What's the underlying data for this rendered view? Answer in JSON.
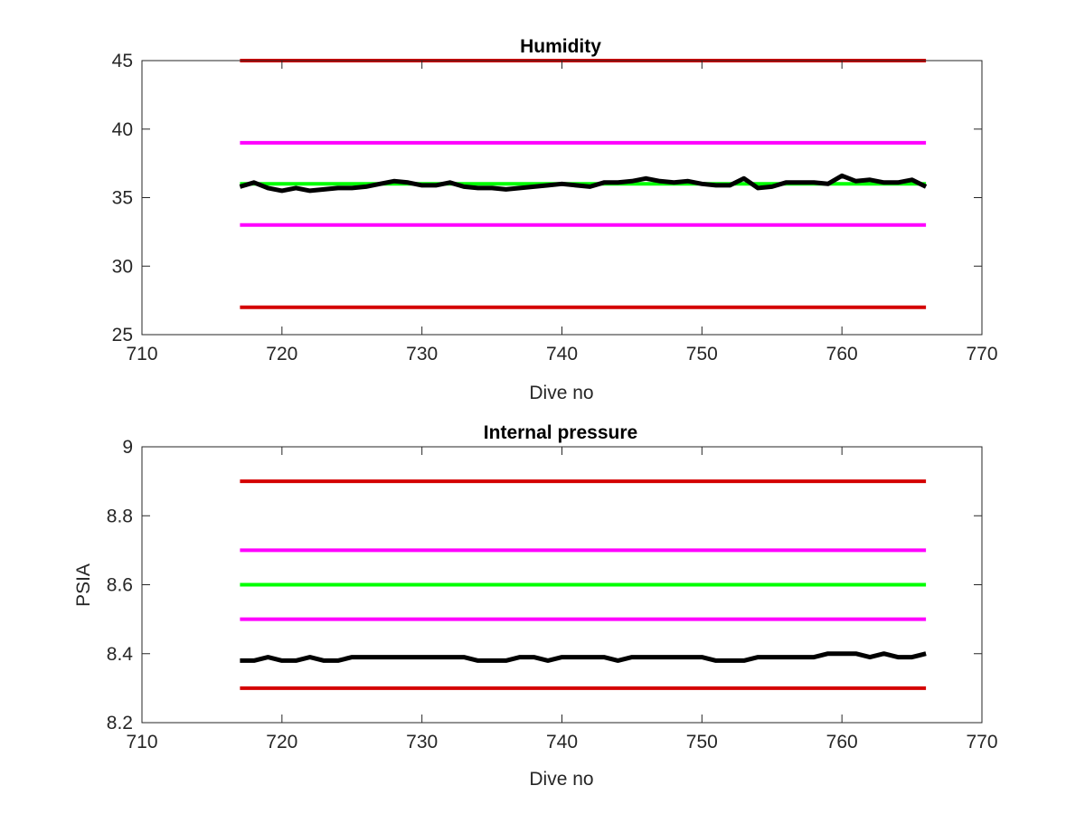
{
  "chart_data": [
    {
      "type": "line",
      "title": "Humidity",
      "xlabel": "Dive no",
      "ylabel": "",
      "xlim": [
        710,
        770
      ],
      "ylim": [
        25,
        45
      ],
      "xticks": [
        710,
        720,
        730,
        740,
        750,
        760,
        770
      ],
      "yticks": [
        25,
        30,
        35,
        40,
        45
      ],
      "grid": false,
      "series": [
        {
          "color": "#d40000",
          "x": [
            717,
            766
          ],
          "values": [
            45,
            45
          ]
        },
        {
          "color": "#ff00ff",
          "x": [
            717,
            766
          ],
          "values": [
            39,
            39
          ]
        },
        {
          "color": "#00ff00",
          "x": [
            717,
            766
          ],
          "values": [
            36,
            36
          ]
        },
        {
          "color": "#ff00ff",
          "x": [
            717,
            766
          ],
          "values": [
            33,
            33
          ]
        },
        {
          "color": "#d40000",
          "x": [
            717,
            766
          ],
          "values": [
            27,
            27
          ]
        },
        {
          "color": "#000000",
          "x": [
            717,
            718,
            719,
            720,
            721,
            722,
            723,
            724,
            725,
            726,
            727,
            728,
            729,
            730,
            731,
            732,
            733,
            734,
            735,
            736,
            737,
            738,
            739,
            740,
            741,
            742,
            743,
            744,
            745,
            746,
            747,
            748,
            749,
            750,
            751,
            752,
            753,
            754,
            755,
            756,
            757,
            758,
            759,
            760,
            761,
            762,
            763,
            764,
            765,
            766
          ],
          "values": [
            35.8,
            36.1,
            35.7,
            35.5,
            35.7,
            35.5,
            35.6,
            35.7,
            35.7,
            35.8,
            36.0,
            36.2,
            36.1,
            35.9,
            35.9,
            36.1,
            35.8,
            35.7,
            35.7,
            35.6,
            35.7,
            35.8,
            35.9,
            36.0,
            35.9,
            35.8,
            36.1,
            36.1,
            36.2,
            36.4,
            36.2,
            36.1,
            36.2,
            36.0,
            35.9,
            35.9,
            36.4,
            35.7,
            35.8,
            36.1,
            36.1,
            36.1,
            36.0,
            36.6,
            36.2,
            36.3,
            36.1,
            36.1,
            36.3,
            35.8
          ]
        }
      ]
    },
    {
      "type": "line",
      "title": "Internal pressure",
      "xlabel": "Dive no",
      "ylabel": "PSIA",
      "xlim": [
        710,
        770
      ],
      "ylim": [
        8.2,
        9
      ],
      "xticks": [
        710,
        720,
        730,
        740,
        750,
        760,
        770
      ],
      "yticks": [
        8.2,
        8.4,
        8.6,
        8.8,
        9
      ],
      "grid": false,
      "series": [
        {
          "color": "#d40000",
          "x": [
            717,
            766
          ],
          "values": [
            8.9,
            8.9
          ]
        },
        {
          "color": "#ff00ff",
          "x": [
            717,
            766
          ],
          "values": [
            8.7,
            8.7
          ]
        },
        {
          "color": "#00ff00",
          "x": [
            717,
            766
          ],
          "values": [
            8.6,
            8.6
          ]
        },
        {
          "color": "#ff00ff",
          "x": [
            717,
            766
          ],
          "values": [
            8.5,
            8.5
          ]
        },
        {
          "color": "#d40000",
          "x": [
            717,
            766
          ],
          "values": [
            8.3,
            8.3
          ]
        },
        {
          "color": "#000000",
          "x": [
            717,
            718,
            719,
            720,
            721,
            722,
            723,
            724,
            725,
            726,
            727,
            728,
            729,
            730,
            731,
            732,
            733,
            734,
            735,
            736,
            737,
            738,
            739,
            740,
            741,
            742,
            743,
            744,
            745,
            746,
            747,
            748,
            749,
            750,
            751,
            752,
            753,
            754,
            755,
            756,
            757,
            758,
            759,
            760,
            761,
            762,
            763,
            764,
            765,
            766
          ],
          "values": [
            8.38,
            8.38,
            8.39,
            8.38,
            8.38,
            8.39,
            8.38,
            8.38,
            8.39,
            8.39,
            8.39,
            8.39,
            8.39,
            8.39,
            8.39,
            8.39,
            8.39,
            8.38,
            8.38,
            8.38,
            8.39,
            8.39,
            8.38,
            8.39,
            8.39,
            8.39,
            8.39,
            8.38,
            8.39,
            8.39,
            8.39,
            8.39,
            8.39,
            8.39,
            8.38,
            8.38,
            8.38,
            8.39,
            8.39,
            8.39,
            8.39,
            8.39,
            8.4,
            8.4,
            8.4,
            8.39,
            8.4,
            8.39,
            8.39,
            8.4
          ]
        }
      ]
    }
  ]
}
